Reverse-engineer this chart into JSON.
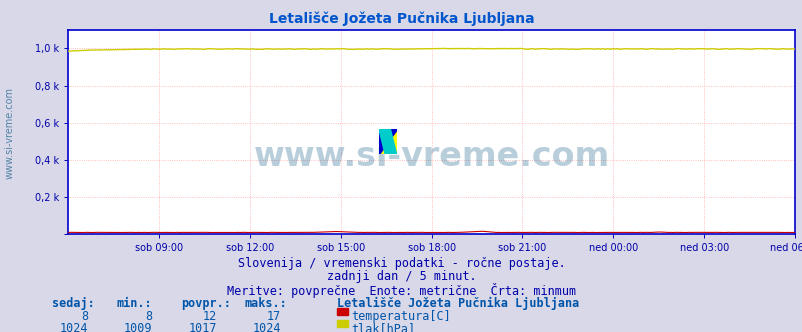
{
  "title": "Letališče Jožeta Pučnika Ljubljana",
  "title_color": "#0055cc",
  "title_fontsize": 10,
  "bg_color": "#d8d8e8",
  "plot_bg_color": "#ffffff",
  "grid_color": "#ffaaaa",
  "grid_style": ":",
  "border_color": "#0000cc",
  "x_tick_labels": [
    "sob 09:00",
    "sob 12:00",
    "sob 15:00",
    "sob 18:00",
    "sob 21:00",
    "ned 00:00",
    "ned 03:00",
    "ned 06:00"
  ],
  "ytick_labels": [
    "",
    "0,2 k",
    "0,4 k",
    "0,6 k",
    "0,8 k",
    "1,0 k"
  ],
  "ytick_positions": [
    0.0,
    0.2,
    0.4,
    0.6,
    0.8,
    1.0
  ],
  "tick_color": "#0000aa",
  "n_points": 288,
  "temp_color": "#cc0000",
  "pressure_color": "#cccc00",
  "watermark": "www.si-vreme.com",
  "watermark_color": "#1a5f8a",
  "watermark_alpha": 0.3,
  "watermark_fontsize": 24,
  "footer_line1": "Slovenija / vremenski podatki - ročne postaje.",
  "footer_line2": "zadnji dan / 5 minut.",
  "footer_line3": "Meritve: povprečne  Enote: metrične  Črta: minmum",
  "footer_color": "#0000aa",
  "footer_fontsize": 8.5,
  "legend_title": "Letališče Jožeta Pučnika Ljubljana",
  "legend_color": "#0055aa",
  "legend_fontsize": 8.5,
  "table_headers": [
    "sedaj:",
    "min.:",
    "povpr.:",
    "maks.:"
  ],
  "table_temp": [
    8,
    8,
    12,
    17
  ],
  "table_pressure": [
    1024,
    1009,
    1017,
    1024
  ],
  "temp_label": "temperatura[C]",
  "pressure_label": "tlak[hPa]"
}
